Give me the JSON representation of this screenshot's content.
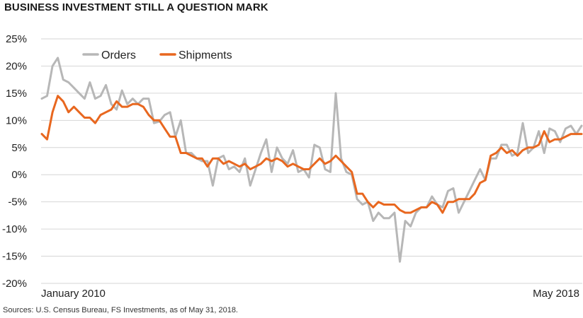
{
  "title": "BUSINESS INVESTMENT STILL A QUESTION MARK",
  "source": "Sources: U.S. Census Bureau, FS Investments, as of May 31, 2018.",
  "chart_data": {
    "type": "line",
    "title": "BUSINESS INVESTMENT STILL A QUESTION MARK",
    "xlabel": "",
    "ylabel": "",
    "ylim": [
      -20,
      25
    ],
    "yticks": [
      25,
      20,
      15,
      10,
      5,
      0,
      -5,
      -10,
      -15,
      -20
    ],
    "ytick_labels": [
      "25%",
      "20%",
      "15%",
      "10%",
      "5%",
      "0%",
      "-5%",
      "-10%",
      "-15%",
      "-20%"
    ],
    "x_range": [
      "January 2010",
      "May 2018"
    ],
    "x_tick_labels": [
      "January 2010",
      "May 2018"
    ],
    "grid": "horizontal",
    "legend": "top-left",
    "series": [
      {
        "name": "Orders",
        "color": "#b7b7b7",
        "values": [
          14,
          14.5,
          20,
          21.5,
          17.5,
          17,
          16,
          15,
          14,
          17,
          14,
          14.5,
          16.5,
          13,
          12,
          15.5,
          13,
          14,
          13,
          14,
          14,
          9.5,
          9.8,
          11,
          11.5,
          7,
          10,
          4,
          4,
          3,
          2.5,
          2.5,
          -2,
          3,
          3.5,
          1,
          1.5,
          0.5,
          3,
          -2,
          1,
          4,
          6.5,
          0.5,
          5,
          3,
          2,
          4.5,
          0.5,
          1,
          -0.5,
          5.5,
          5,
          1,
          0.5,
          15,
          3,
          0.5,
          0,
          -4.5,
          -5.5,
          -5,
          -8.5,
          -7,
          -8,
          -8,
          -7,
          -16,
          -8.5,
          -9.5,
          -7,
          -6,
          -6,
          -4,
          -5.5,
          -6,
          -3,
          -2.5,
          -7,
          -5,
          -3,
          -1,
          1,
          -1,
          3,
          3,
          5.5,
          5.5,
          3.5,
          4,
          9.5,
          4,
          5,
          8,
          4,
          8.5,
          8,
          6,
          8.5,
          9,
          7.5,
          9
        ]
      },
      {
        "name": "Shipments",
        "color": "#e8671f",
        "values": [
          7.5,
          6.5,
          11.5,
          14.5,
          13.5,
          11.5,
          12.5,
          11.5,
          10.5,
          10.5,
          9.5,
          11,
          11.5,
          12,
          13.5,
          12.5,
          12.5,
          13,
          13,
          12.5,
          11,
          10,
          10,
          8.5,
          7,
          7,
          4,
          4,
          3.5,
          3,
          3,
          1.5,
          3,
          3,
          2,
          2.5,
          2,
          1.5,
          2,
          1,
          1.5,
          2,
          3,
          2.5,
          3,
          2.5,
          1.5,
          2,
          1.5,
          1,
          1,
          2,
          3,
          2,
          2.5,
          3.5,
          2.5,
          1.5,
          0.5,
          -3.5,
          -3.5,
          -5,
          -6,
          -5,
          -5.5,
          -5.5,
          -5.5,
          -6.5,
          -7,
          -7,
          -6.5,
          -6,
          -6,
          -5,
          -5.5,
          -7,
          -5,
          -5,
          -4.5,
          -4.5,
          -4.5,
          -3.5,
          -1.5,
          -1,
          3.5,
          4,
          5,
          4,
          4.5,
          3.5,
          4.5,
          5,
          5,
          5.5,
          8,
          6,
          6.5,
          6.5,
          7,
          7.5,
          7.5,
          7.5
        ]
      }
    ]
  }
}
